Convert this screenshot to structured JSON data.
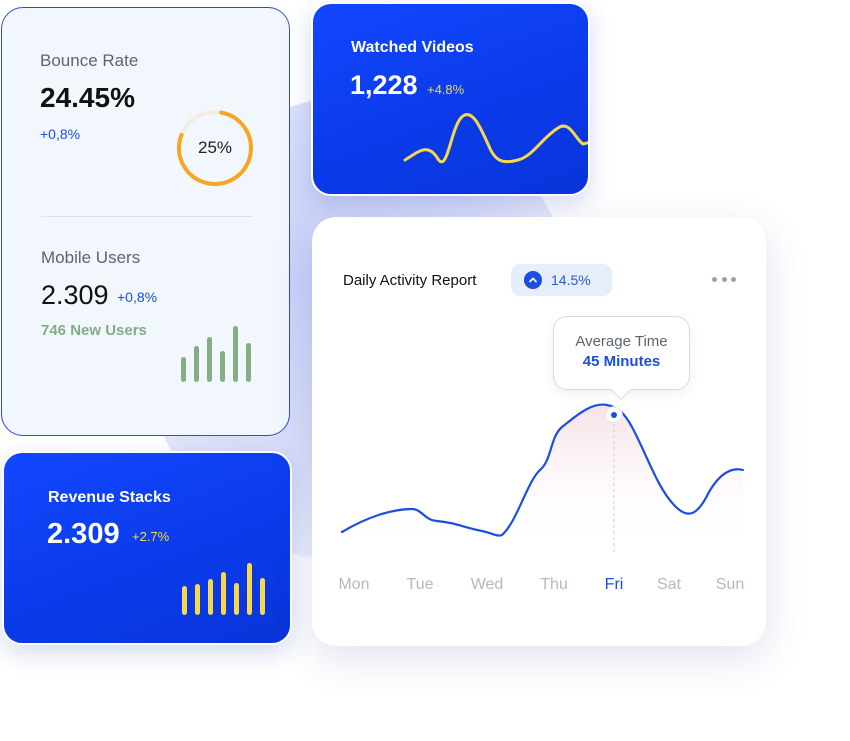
{
  "bounce": {
    "label": "Bounce Rate",
    "value": "24.45%",
    "delta": "+0,8%",
    "ring_label": "25%",
    "ring_percent": 25
  },
  "mobile": {
    "label": "Mobile Users",
    "value": "2.309",
    "delta": "+0,8%",
    "new_users": "746 New Users",
    "bars": [
      0.45,
      0.65,
      0.8,
      0.55,
      1.0,
      0.7
    ]
  },
  "watched": {
    "title": "Watched Videos",
    "value": "1,228",
    "delta": "+4.8%"
  },
  "revenue": {
    "title": "Revenue Stacks",
    "value": "2.309",
    "delta": "+2.7%",
    "bars": [
      0.55,
      0.6,
      0.7,
      0.82,
      0.62,
      1.0,
      0.72
    ]
  },
  "report": {
    "title": "Daily Activity Report",
    "badge": "14.5%",
    "tooltip_label": "Average Time",
    "tooltip_value": "45 Minutes",
    "days": [
      "Mon",
      "Tue",
      "Wed",
      "Thu",
      "Fri",
      "Sat",
      "Sun"
    ],
    "active_day": "Fri"
  },
  "colors": {
    "accent": "#1a4fe0",
    "yellow": "#f6d84b",
    "ring": "#f6a623",
    "green": "#84ad84"
  },
  "icons": {
    "badge": "chevron-up-icon",
    "menu": "more-dots-icon"
  }
}
